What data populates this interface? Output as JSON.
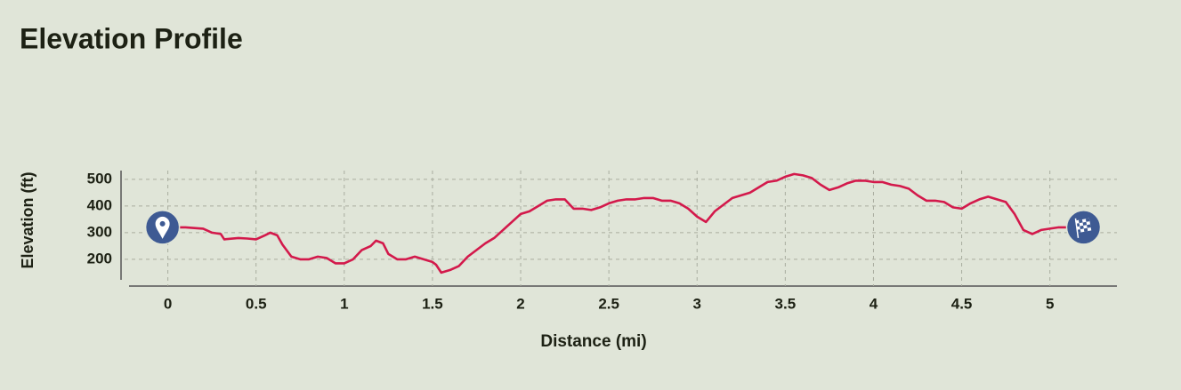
{
  "chart_data": {
    "type": "line",
    "title": "Elevation Profile",
    "x_label": "Distance (mi)",
    "y_label": "Elevation (ft)",
    "x": [
      0,
      0.1,
      0.2,
      0.25,
      0.3,
      0.32,
      0.4,
      0.45,
      0.5,
      0.55,
      0.58,
      0.62,
      0.65,
      0.7,
      0.75,
      0.8,
      0.85,
      0.9,
      0.95,
      1.0,
      1.05,
      1.1,
      1.15,
      1.18,
      1.22,
      1.25,
      1.3,
      1.35,
      1.4,
      1.45,
      1.5,
      1.52,
      1.55,
      1.6,
      1.65,
      1.7,
      1.75,
      1.8,
      1.85,
      1.9,
      1.95,
      2.0,
      2.05,
      2.1,
      2.15,
      2.2,
      2.25,
      2.3,
      2.35,
      2.4,
      2.45,
      2.5,
      2.55,
      2.6,
      2.65,
      2.7,
      2.75,
      2.8,
      2.85,
      2.9,
      2.95,
      3.0,
      3.05,
      3.1,
      3.15,
      3.2,
      3.25,
      3.3,
      3.35,
      3.4,
      3.45,
      3.5,
      3.55,
      3.6,
      3.65,
      3.7,
      3.75,
      3.8,
      3.85,
      3.9,
      3.95,
      4.0,
      4.05,
      4.1,
      4.15,
      4.2,
      4.25,
      4.3,
      4.35,
      4.4,
      4.45,
      4.5,
      4.55,
      4.6,
      4.65,
      4.7,
      4.75,
      4.8,
      4.85,
      4.9,
      4.95,
      5.0,
      5.05,
      5.1
    ],
    "series": [
      {
        "name": "Elevation",
        "color": "#d3194b",
        "values": [
          320,
          320,
          315,
          300,
          295,
          275,
          280,
          278,
          275,
          290,
          300,
          290,
          255,
          210,
          200,
          200,
          210,
          205,
          185,
          185,
          200,
          235,
          250,
          270,
          260,
          220,
          200,
          200,
          210,
          200,
          190,
          180,
          150,
          160,
          175,
          210,
          235,
          260,
          280,
          310,
          340,
          370,
          380,
          400,
          420,
          425,
          425,
          390,
          390,
          385,
          395,
          410,
          420,
          425,
          425,
          430,
          430,
          420,
          420,
          410,
          390,
          360,
          340,
          380,
          405,
          430,
          440,
          450,
          470,
          490,
          495,
          510,
          520,
          515,
          505,
          480,
          460,
          470,
          485,
          495,
          495,
          490,
          490,
          480,
          475,
          465,
          440,
          420,
          420,
          415,
          395,
          390,
          410,
          425,
          435,
          425,
          415,
          370,
          310,
          295,
          310,
          315,
          320,
          320
        ]
      }
    ],
    "xlim": [
      -0.22,
      5.38
    ],
    "ylim": [
      123,
      533
    ],
    "xticks": [
      0,
      0.5,
      1,
      1.5,
      2,
      2.5,
      3,
      3.5,
      4,
      4.5,
      5
    ],
    "yticks": [
      200,
      300,
      400,
      500
    ],
    "grid": true
  }
}
